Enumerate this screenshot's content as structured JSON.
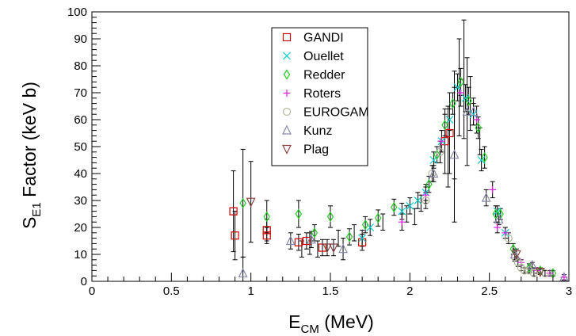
{
  "chart_data": {
    "type": "scatter",
    "xlabel": "E",
    "xlabel_sub": "CM",
    "xlabel_unit": " (MeV)",
    "ylabel": "S",
    "ylabel_sub": "E1",
    "ylabel_unit": " Factor (keV b)",
    "xlim": [
      0,
      3
    ],
    "ylim": [
      0,
      100
    ],
    "x_ticks": [
      0,
      0.5,
      1,
      1.5,
      2,
      2.5,
      3
    ],
    "x_tick_labels": [
      "0",
      "0.5",
      "1",
      "1.5",
      "2",
      "2.5",
      "3"
    ],
    "y_ticks": [
      0,
      10,
      20,
      30,
      40,
      50,
      60,
      70,
      80,
      90,
      100
    ],
    "y_tick_labels": [
      "0",
      "10",
      "20",
      "30",
      "40",
      "50",
      "60",
      "70",
      "80",
      "90",
      "100"
    ],
    "grid": false,
    "legend_position": "top-center",
    "series": [
      {
        "name": "GANDI",
        "marker": "square",
        "color": "#cc0000",
        "points": [
          [
            0.89,
            26,
            15
          ],
          [
            0.9,
            17,
            9
          ],
          [
            1.1,
            19,
            4
          ],
          [
            1.1,
            17,
            3
          ],
          [
            1.3,
            14.5,
            3
          ],
          [
            1.35,
            15,
            3
          ],
          [
            1.45,
            12.5,
            3
          ],
          [
            1.7,
            14.5,
            3
          ],
          [
            2.22,
            52,
            12
          ],
          [
            2.25,
            55,
            15
          ]
        ]
      },
      {
        "name": "Ouellet",
        "marker": "x",
        "color": "#00cccc",
        "points": [
          [
            1.7,
            16,
            3
          ],
          [
            1.75,
            20,
            3
          ],
          [
            1.95,
            26,
            3
          ],
          [
            2.0,
            28,
            3
          ],
          [
            2.05,
            30,
            3
          ],
          [
            2.1,
            33,
            3
          ],
          [
            2.15,
            45,
            3
          ],
          [
            2.2,
            52,
            4
          ],
          [
            2.25,
            60,
            4
          ],
          [
            2.3,
            72,
            5
          ],
          [
            2.35,
            68,
            5
          ],
          [
            2.4,
            62,
            4
          ],
          [
            2.45,
            45,
            4
          ],
          [
            2.55,
            26,
            2
          ],
          [
            2.6,
            18,
            2
          ]
        ]
      },
      {
        "name": "Redder",
        "marker": "diamond",
        "color": "#22cc22",
        "points": [
          [
            0.95,
            29,
            20
          ],
          [
            1.1,
            24,
            6
          ],
          [
            1.3,
            25,
            5
          ],
          [
            1.4,
            18,
            3
          ],
          [
            1.5,
            24,
            4
          ],
          [
            1.62,
            16.5,
            3
          ],
          [
            1.72,
            21,
            3
          ],
          [
            1.8,
            23.5,
            3
          ],
          [
            1.9,
            27.5,
            3
          ],
          [
            2.12,
            36,
            3
          ],
          [
            2.17,
            47,
            3
          ],
          [
            2.22,
            58,
            4
          ],
          [
            2.27,
            66,
            4
          ],
          [
            2.32,
            74,
            5
          ],
          [
            2.37,
            67,
            5
          ],
          [
            2.43,
            57,
            4
          ],
          [
            2.47,
            46,
            4
          ],
          [
            2.54,
            25,
            3
          ],
          [
            2.57,
            25,
            2
          ],
          [
            2.65,
            12,
            2
          ],
          [
            2.75,
            5,
            1.5
          ],
          [
            2.82,
            4,
            1
          ],
          [
            2.9,
            3,
            1
          ]
        ]
      },
      {
        "name": "Roters",
        "marker": "plus",
        "color": "#dd22dd",
        "points": [
          [
            1.95,
            22,
            3
          ],
          [
            2.1,
            32,
            3
          ],
          [
            2.2,
            52,
            4
          ],
          [
            2.32,
            70,
            5
          ],
          [
            2.42,
            60,
            5
          ],
          [
            2.52,
            34,
            3
          ],
          [
            2.55,
            20,
            2
          ],
          [
            2.6,
            18,
            2
          ],
          [
            2.7,
            7,
            1
          ],
          [
            2.8,
            4,
            1
          ],
          [
            2.88,
            3,
            1
          ],
          [
            2.97,
            1.5,
            1
          ]
        ]
      },
      {
        "name": "EUROGAM",
        "marker": "circle",
        "color": "#b8b8a0",
        "points": [
          [
            2.1,
            30,
            3
          ],
          [
            2.14,
            40,
            3
          ],
          [
            2.19,
            48,
            4
          ],
          [
            2.62,
            16,
            2
          ],
          [
            2.66,
            9,
            1.5
          ],
          [
            2.68,
            7,
            1.5
          ],
          [
            2.7,
            5,
            1
          ],
          [
            2.72,
            4,
            1
          ],
          [
            2.75,
            4,
            1
          ],
          [
            2.78,
            3,
            1
          ],
          [
            2.85,
            3,
            1
          ]
        ]
      },
      {
        "name": "Kunz",
        "marker": "triangle-up",
        "color": "#8888aa",
        "points": [
          [
            0.95,
            3,
            6
          ],
          [
            1.25,
            15,
            3
          ],
          [
            1.38,
            15.5,
            3
          ],
          [
            1.58,
            12,
            4
          ],
          [
            2.15,
            40,
            3
          ],
          [
            2.28,
            47,
            25
          ],
          [
            2.36,
            63,
            20
          ],
          [
            2.4,
            63,
            5
          ],
          [
            2.48,
            31,
            3
          ],
          [
            2.56,
            23,
            2
          ],
          [
            2.66,
            10,
            2
          ],
          [
            2.77,
            6,
            1
          ],
          [
            2.97,
            1.5,
            1
          ]
        ]
      },
      {
        "name": "Plag",
        "marker": "triangle-down",
        "color": "#884444",
        "points": [
          [
            1.0,
            29.5,
            15
          ],
          [
            1.48,
            12.5,
            3
          ],
          [
            1.52,
            12.5,
            3
          ],
          [
            2.67,
            10,
            2
          ],
          [
            2.82,
            3.5,
            1
          ]
        ]
      }
    ],
    "extra_error_bars": [
      [
        1.32,
        12,
        3
      ],
      [
        1.37,
        14,
        4
      ],
      [
        1.42,
        12,
        3
      ],
      [
        1.55,
        16,
        3
      ],
      [
        1.65,
        18,
        3
      ],
      [
        1.83,
        22,
        3
      ],
      [
        1.98,
        25,
        3
      ],
      [
        2.03,
        24,
        3
      ],
      [
        2.07,
        29,
        3
      ],
      [
        2.24,
        50,
        15
      ],
      [
        2.28,
        58,
        20
      ],
      [
        2.31,
        72,
        18
      ],
      [
        2.34,
        75,
        22
      ],
      [
        2.38,
        66,
        10
      ],
      [
        2.44,
        52,
        5
      ]
    ]
  }
}
